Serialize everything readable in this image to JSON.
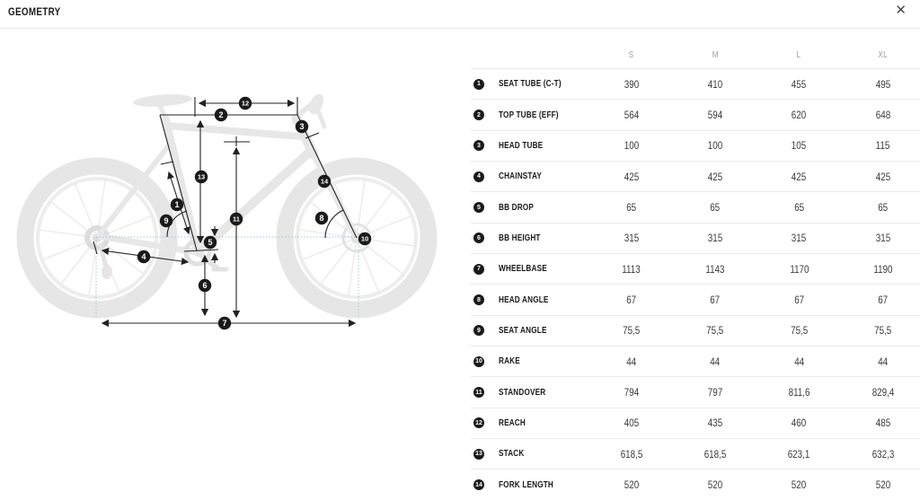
{
  "page": {
    "title": "GEOMETRY",
    "close_icon": "✕"
  },
  "colors": {
    "marker_bg": "#1a1a1a",
    "marker_text": "#ffffff",
    "measure_line": "#222222",
    "dotted_guide": "#a6c4d6",
    "silhouette": "#e7e7e7",
    "row_divider": "#ebebeb",
    "size_header_text": "#9aa0a0",
    "value_text": "#3a3a3a"
  },
  "diagram": {
    "markers": [
      "1",
      "2",
      "3",
      "4",
      "5",
      "6",
      "7",
      "8",
      "9",
      "10",
      "11",
      "12",
      "13",
      "14"
    ]
  },
  "table": {
    "size_headers": [
      "S",
      "M",
      "L",
      "XL"
    ],
    "rows": [
      {
        "num": "1",
        "label": "SEAT TUBE (C-T)",
        "values": [
          "390",
          "410",
          "455",
          "495"
        ]
      },
      {
        "num": "2",
        "label": "TOP TUBE (EFF)",
        "values": [
          "564",
          "594",
          "620",
          "648"
        ]
      },
      {
        "num": "3",
        "label": "HEAD TUBE",
        "values": [
          "100",
          "100",
          "105",
          "115"
        ]
      },
      {
        "num": "4",
        "label": "CHAINSTAY",
        "values": [
          "425",
          "425",
          "425",
          "425"
        ]
      },
      {
        "num": "5",
        "label": "BB DROP",
        "values": [
          "65",
          "65",
          "65",
          "65"
        ]
      },
      {
        "num": "6",
        "label": "BB HEIGHT",
        "values": [
          "315",
          "315",
          "315",
          "315"
        ]
      },
      {
        "num": "7",
        "label": "WHEELBASE",
        "values": [
          "1113",
          "1143",
          "1170",
          "1190"
        ]
      },
      {
        "num": "8",
        "label": "HEAD ANGLE",
        "values": [
          "67",
          "67",
          "67",
          "67"
        ]
      },
      {
        "num": "9",
        "label": "SEAT ANGLE",
        "values": [
          "75,5",
          "75,5",
          "75,5",
          "75,5"
        ]
      },
      {
        "num": "10",
        "label": "RAKE",
        "values": [
          "44",
          "44",
          "44",
          "44"
        ]
      },
      {
        "num": "11",
        "label": "STANDOVER",
        "values": [
          "794",
          "797",
          "811,6",
          "829,4"
        ]
      },
      {
        "num": "12",
        "label": "REACH",
        "values": [
          "405",
          "435",
          "460",
          "485"
        ]
      },
      {
        "num": "13",
        "label": "STACK",
        "values": [
          "618,5",
          "618,5",
          "623,1",
          "632,3"
        ]
      },
      {
        "num": "14",
        "label": "FORK LENGTH",
        "values": [
          "520",
          "520",
          "520",
          "520"
        ]
      }
    ]
  }
}
